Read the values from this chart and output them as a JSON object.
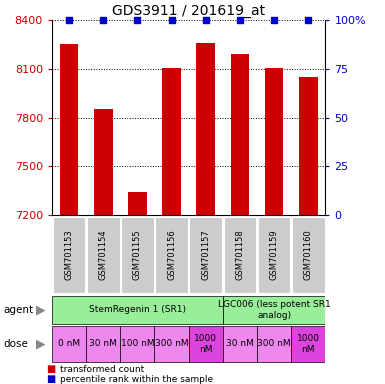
{
  "title": "GDS3911 / 201619_at",
  "bar_values": [
    8250,
    7850,
    7340,
    8105,
    8260,
    8190,
    8105,
    8050
  ],
  "percentile_values": [
    100,
    100,
    100,
    100,
    100,
    100,
    100,
    100
  ],
  "sample_labels": [
    "GSM701153",
    "GSM701154",
    "GSM701155",
    "GSM701156",
    "GSM701157",
    "GSM701158",
    "GSM701159",
    "GSM701160"
  ],
  "ylim_left": [
    7200,
    8400
  ],
  "yticks_left": [
    7200,
    7500,
    7800,
    8100,
    8400
  ],
  "ylim_right": [
    0,
    100
  ],
  "yticks_right": [
    0,
    25,
    50,
    75,
    100
  ],
  "bar_color": "#cc0000",
  "dot_color": "#0000cc",
  "bar_width": 0.55,
  "agent_row": [
    {
      "label": "StemRegenin 1 (SR1)",
      "start": 0,
      "end": 5,
      "color": "#99ee99"
    },
    {
      "label": "LGC006 (less potent SR1\nanalog)",
      "start": 5,
      "end": 8,
      "color": "#99ee99"
    }
  ],
  "dose_row": [
    {
      "label": "0 nM",
      "color": "#ee88ee"
    },
    {
      "label": "30 nM",
      "color": "#ee88ee"
    },
    {
      "label": "100 nM",
      "color": "#ee88ee"
    },
    {
      "label": "300 nM",
      "color": "#ee88ee"
    },
    {
      "label": "1000\nnM",
      "color": "#dd44dd"
    },
    {
      "label": "30 nM",
      "color": "#ee88ee"
    },
    {
      "label": "300 nM",
      "color": "#ee88ee"
    },
    {
      "label": "1000\nnM",
      "color": "#dd44dd"
    }
  ],
  "legend_items": [
    {
      "color": "#cc0000",
      "label": "transformed count"
    },
    {
      "color": "#0000cc",
      "label": "percentile rank within the sample"
    }
  ],
  "left_tick_color": "#cc0000",
  "right_tick_color": "#0000cc",
  "sample_box_color": "#cccccc"
}
